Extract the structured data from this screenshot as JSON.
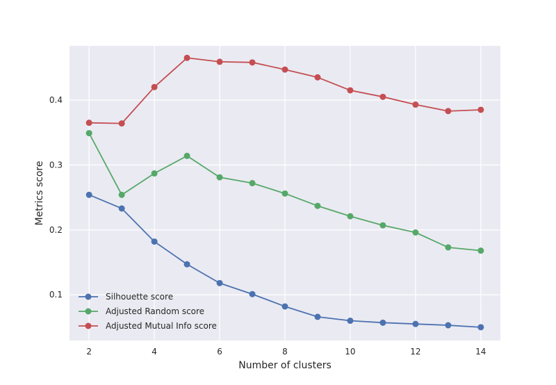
{
  "chart_data": {
    "type": "line",
    "title": "",
    "xlabel": "Number of clusters",
    "ylabel": "Metrics score",
    "x": [
      2,
      3,
      4,
      5,
      6,
      7,
      8,
      9,
      10,
      11,
      12,
      13,
      14
    ],
    "xlim": [
      1.4,
      14.6
    ],
    "ylim": [
      0.0295,
      0.4835
    ],
    "xticks": [
      2,
      4,
      6,
      8,
      10,
      12,
      14
    ],
    "xtick_labels": [
      "2",
      "4",
      "6",
      "8",
      "10",
      "12",
      "14"
    ],
    "yticks": [
      0.1,
      0.2,
      0.3,
      0.4
    ],
    "ytick_labels": [
      "0.1",
      "0.2",
      "0.3",
      "0.4"
    ],
    "grid": true,
    "legend_position": "lower-left",
    "series": [
      {
        "name": "Silhouette score",
        "color": "#4c72b0",
        "values": [
          0.254,
          0.233,
          0.182,
          0.147,
          0.118,
          0.101,
          0.082,
          0.066,
          0.06,
          0.057,
          0.055,
          0.053,
          0.05
        ]
      },
      {
        "name": "Adjusted Random score",
        "color": "#55a868",
        "values": [
          0.349,
          0.254,
          0.287,
          0.314,
          0.281,
          0.272,
          0.256,
          0.237,
          0.221,
          0.207,
          0.196,
          0.173,
          0.168
        ]
      },
      {
        "name": "Adjusted Mutual Info score",
        "color": "#c44e52",
        "values": [
          0.365,
          0.364,
          0.42,
          0.465,
          0.459,
          0.458,
          0.447,
          0.435,
          0.415,
          0.405,
          0.393,
          0.383,
          0.385
        ]
      }
    ]
  }
}
